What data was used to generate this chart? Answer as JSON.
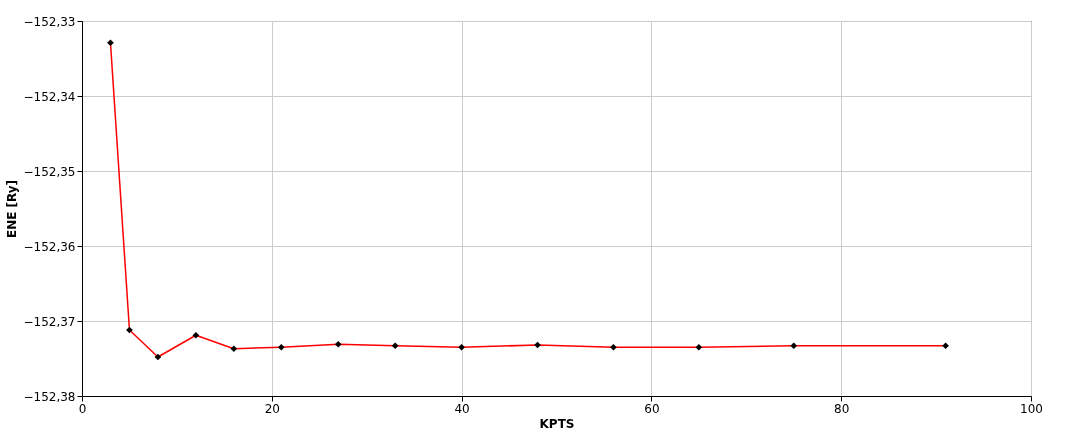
{
  "chart_data": {
    "type": "line",
    "xlabel": "KPTS",
    "ylabel": "ENE [Ry]",
    "x": [
      3,
      5,
      8,
      12,
      16,
      21,
      27,
      33,
      40,
      48,
      56,
      65,
      75,
      91
    ],
    "series": [
      {
        "color": "#ff0000",
        "values": [
          -152.3329,
          -152.3712,
          -152.3748,
          -152.3719,
          -152.3737,
          -152.3735,
          -152.3731,
          -152.3733,
          -152.3735,
          -152.3732,
          -152.3735,
          -152.3735,
          -152.3733,
          -152.3733
        ]
      }
    ],
    "xlim": [
      0,
      100
    ],
    "xticks": [
      0,
      20,
      40,
      60,
      80,
      100
    ],
    "ylim": [
      -152.38,
      -152.33
    ],
    "yticks": [
      {
        "value": -152.38,
        "label": "−152,38"
      },
      {
        "value": -152.37,
        "label": "−152,37"
      },
      {
        "value": -152.36,
        "label": "−152,36"
      },
      {
        "value": -152.35,
        "label": "−152,35"
      },
      {
        "value": -152.34,
        "label": "−152,34"
      },
      {
        "value": -152.33,
        "label": "−152,33"
      }
    ],
    "grid": true,
    "marker": "diamond",
    "line_style": "solid"
  }
}
